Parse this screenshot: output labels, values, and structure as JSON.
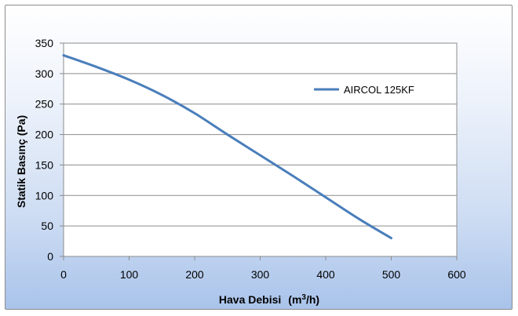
{
  "chart_data": {
    "type": "line",
    "xlabel_main": "Hava Debisi",
    "xlabel_unit_prefix": "(m",
    "xlabel_unit_sup": "3",
    "xlabel_unit_suffix": "/h)",
    "ylabel": "Statik Basınç  (Pa)",
    "xlim": [
      0,
      600
    ],
    "ylim": [
      0,
      350
    ],
    "xticks": [
      "0",
      "100",
      "200",
      "300",
      "400",
      "500",
      "600"
    ],
    "yticks": [
      "0",
      "50",
      "100",
      "150",
      "200",
      "250",
      "300",
      "350"
    ],
    "grid": "horizontal",
    "legend_position": "right",
    "series": [
      {
        "name": "AIRCOL 125KF",
        "color": "#4a7ebb",
        "x": [
          0,
          50,
          100,
          150,
          200,
          250,
          300,
          350,
          400,
          450,
          500
        ],
        "y": [
          330,
          311,
          290,
          265,
          235,
          200,
          166,
          132,
          97,
          62,
          30
        ]
      }
    ]
  }
}
